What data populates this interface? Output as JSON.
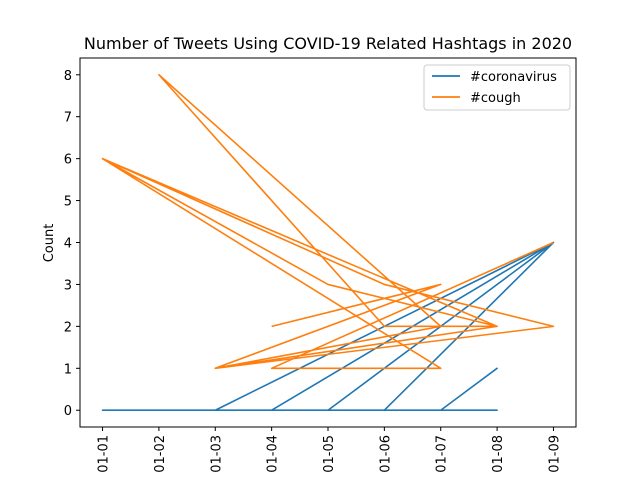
{
  "chart_data": {
    "type": "line",
    "title": "Number of Tweets Using COVID-19 Related Hashtags in 2020",
    "xlabel": "",
    "ylabel": "Count",
    "categories": [
      "01-01",
      "01-02",
      "01-03",
      "01-04",
      "01-05",
      "01-06",
      "01-07",
      "01-08",
      "01-09"
    ],
    "yticks": [
      0,
      1,
      2,
      3,
      4,
      5,
      6,
      7,
      8
    ],
    "ylim": [
      -0.4,
      8.4
    ],
    "xlim": [
      -0.4,
      8.4
    ],
    "grid": false,
    "legend_position": "top-right",
    "series": [
      {
        "name": "#coronavirus",
        "color": "#1f77b4",
        "x": [
          0,
          2,
          8,
          3,
          0,
          6,
          4,
          8,
          5,
          6,
          7,
          6,
          3,
          5,
          7,
          0,
          6,
          7
        ],
        "y": [
          0,
          0,
          4,
          0,
          0,
          0,
          0,
          4,
          0,
          0,
          1,
          0,
          0,
          0,
          0,
          0,
          0,
          0
        ]
      },
      {
        "name": "#cough",
        "color": "#ff7f0e",
        "x": [
          3,
          6,
          2,
          7,
          0,
          5,
          8,
          2,
          6,
          1,
          5,
          7,
          4,
          0,
          6,
          3,
          8
        ],
        "y": [
          2,
          3,
          1,
          2,
          6,
          3,
          2,
          1,
          2,
          8,
          2,
          2,
          3,
          6,
          1,
          1,
          4
        ]
      }
    ]
  }
}
